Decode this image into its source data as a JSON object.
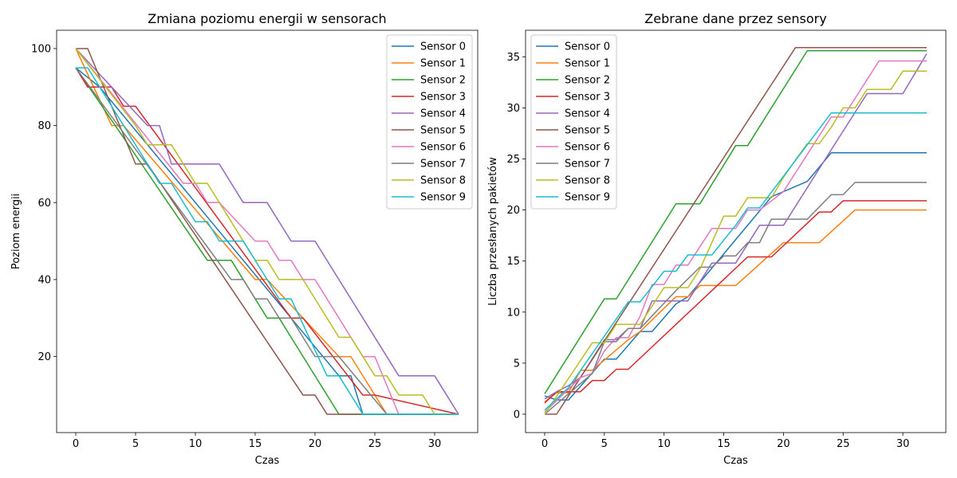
{
  "colors": [
    "#1f77b4",
    "#ff7f0e",
    "#2ca02c",
    "#d62728",
    "#9467bd",
    "#8c564b",
    "#e377c2",
    "#7f7f7f",
    "#bcbd22",
    "#17becf"
  ],
  "chart_data": [
    {
      "type": "line",
      "title": "Zmiana poziomu energii w sensorach",
      "xlabel": "Czas",
      "ylabel": "Poziom energii",
      "xlim": [
        -1.6,
        33.6
      ],
      "ylim": [
        0.25,
        104.75
      ],
      "xticks": [
        0,
        5,
        10,
        15,
        20,
        25,
        30
      ],
      "yticks": [
        20,
        40,
        60,
        80,
        100
      ],
      "legend_position": "top-right",
      "series": [
        {
          "name": "Sensor 0",
          "x": [
            0,
            2,
            22,
            23,
            24,
            32
          ],
          "y": [
            95,
            90,
            15,
            15,
            5,
            5
          ]
        },
        {
          "name": "Sensor 1",
          "x": [
            0,
            3,
            4,
            15,
            16,
            22,
            23,
            25,
            26,
            32
          ],
          "y": [
            100,
            80,
            80,
            40,
            40,
            20,
            20,
            10,
            5,
            5
          ]
        },
        {
          "name": "Sensor 2",
          "x": [
            0,
            11,
            12,
            13,
            16,
            17,
            22,
            32
          ],
          "y": [
            95,
            45,
            45,
            45,
            30,
            30,
            5,
            5
          ]
        },
        {
          "name": "Sensor 3",
          "x": [
            0,
            1,
            2,
            3,
            4,
            5,
            18,
            19,
            24,
            25,
            32
          ],
          "y": [
            95,
            90,
            90,
            90,
            85,
            85,
            30,
            30,
            10,
            10,
            5
          ]
        },
        {
          "name": "Sensor 4",
          "x": [
            0,
            6,
            7,
            8,
            9,
            10,
            11,
            12,
            14,
            15,
            16,
            18,
            19,
            20,
            27,
            28,
            29,
            30,
            32
          ],
          "y": [
            100,
            80,
            80,
            70,
            70,
            70,
            70,
            70,
            60,
            60,
            60,
            50,
            50,
            50,
            15,
            15,
            15,
            15,
            5
          ]
        },
        {
          "name": "Sensor 5",
          "x": [
            0,
            1,
            5,
            6,
            19,
            20,
            21,
            22,
            23,
            24,
            32
          ],
          "y": [
            100,
            100,
            70,
            70,
            10,
            10,
            5,
            5,
            5,
            5,
            5
          ]
        },
        {
          "name": "Sensor 6",
          "x": [
            0,
            9,
            10,
            11,
            12,
            15,
            16,
            17,
            18,
            19,
            20,
            24,
            25,
            27,
            28,
            32
          ],
          "y": [
            100,
            65,
            65,
            60,
            60,
            50,
            50,
            45,
            45,
            40,
            40,
            20,
            20,
            5,
            5,
            5
          ]
        },
        {
          "name": "Sensor 7",
          "x": [
            0,
            13,
            14,
            15,
            16,
            17,
            18,
            20,
            21,
            22,
            26,
            32
          ],
          "y": [
            95,
            40,
            40,
            35,
            35,
            30,
            30,
            20,
            20,
            20,
            5,
            5
          ]
        },
        {
          "name": "Sensor 8",
          "x": [
            0,
            5,
            6,
            7,
            8,
            10,
            11,
            15,
            16,
            17,
            18,
            19,
            22,
            23,
            25,
            26,
            27,
            28,
            29,
            30,
            31,
            32
          ],
          "y": [
            100,
            80,
            75,
            75,
            75,
            65,
            65,
            45,
            45,
            40,
            40,
            40,
            25,
            25,
            15,
            15,
            10,
            10,
            10,
            5,
            5,
            5
          ]
        },
        {
          "name": "Sensor 9",
          "x": [
            0,
            1,
            7,
            8,
            10,
            11,
            12,
            13,
            14,
            17,
            18,
            21,
            22,
            24,
            32
          ],
          "y": [
            95,
            95,
            65,
            65,
            55,
            55,
            50,
            50,
            50,
            35,
            35,
            15,
            15,
            5,
            5
          ]
        }
      ]
    },
    {
      "type": "line",
      "title": "Zebrane dane przez sensory",
      "xlabel": "Czas",
      "ylabel": "Liczba przesłanych pakietów",
      "xlim": [
        -1.6,
        33.6
      ],
      "ylim": [
        -1.8,
        37.6
      ],
      "xticks": [
        0,
        5,
        10,
        15,
        20,
        25,
        30
      ],
      "yticks": [
        0,
        5,
        10,
        15,
        20,
        25,
        30,
        35
      ],
      "legend_position": "top-left",
      "series": [
        {
          "name": "Sensor 0",
          "x": [
            0,
            1,
            2,
            5,
            6,
            8,
            9,
            11,
            12,
            14,
            18,
            19,
            22,
            24,
            32
          ],
          "y": [
            1.8,
            1.4,
            1.4,
            5.4,
            5.4,
            8.1,
            8.1,
            10.8,
            11.5,
            14.3,
            19.9,
            21.3,
            22.8,
            25.6,
            25.6
          ]
        },
        {
          "name": "Sensor 1",
          "x": [
            0,
            1,
            2,
            3,
            4,
            7,
            8,
            11,
            12,
            13,
            16,
            20,
            23,
            26,
            32
          ],
          "y": [
            1.2,
            2.1,
            2.1,
            4.3,
            4.3,
            7.3,
            8.1,
            11.5,
            11.5,
            12.6,
            12.6,
            16.8,
            16.8,
            20,
            20
          ]
        },
        {
          "name": "Sensor 2",
          "x": [
            0,
            5,
            6,
            11,
            12,
            13,
            16,
            17,
            22,
            32
          ],
          "y": [
            2,
            11.3,
            11.3,
            20.6,
            20.6,
            20.6,
            26.3,
            26.3,
            35.6,
            35.6
          ]
        },
        {
          "name": "Sensor 3",
          "x": [
            0,
            1,
            2,
            3,
            4,
            5,
            6,
            7,
            17,
            18,
            19,
            23,
            24,
            25,
            32
          ],
          "y": [
            1.1,
            2.2,
            2.2,
            2.2,
            3.3,
            3.3,
            4.4,
            4.4,
            15.4,
            15.4,
            15.4,
            19.8,
            19.8,
            20.9,
            20.9
          ]
        },
        {
          "name": "Sensor 4",
          "x": [
            0,
            1,
            2,
            3,
            5,
            6,
            7,
            8,
            9,
            11,
            12,
            14,
            16,
            18,
            19,
            20,
            24,
            27,
            28,
            30,
            32
          ],
          "y": [
            1.5,
            2.2,
            2.8,
            3.6,
            7.3,
            7.3,
            8.4,
            8.4,
            11.1,
            11.1,
            11.1,
            14.8,
            14.8,
            18.5,
            18.5,
            18.5,
            25.9,
            31.4,
            31.4,
            31.4,
            35.3
          ]
        },
        {
          "name": "Sensor 5",
          "x": [
            0,
            1,
            21,
            22,
            32
          ],
          "y": [
            0,
            0,
            35.9,
            35.9,
            35.9
          ]
        },
        {
          "name": "Sensor 6",
          "x": [
            0,
            3,
            4,
            5,
            6,
            7,
            8,
            9,
            10,
            11,
            12,
            14,
            15,
            16,
            17,
            18,
            20,
            24,
            25,
            28,
            32
          ],
          "y": [
            0.2,
            3.6,
            4,
            6.2,
            7.5,
            7.5,
            9.6,
            12.7,
            12.7,
            14.6,
            14.6,
            18.2,
            18.2,
            18.2,
            20,
            20,
            21.8,
            29.1,
            29.1,
            34.6,
            34.6
          ]
        },
        {
          "name": "Sensor 7",
          "x": [
            0,
            4,
            5,
            6,
            7,
            8,
            11,
            13,
            14,
            15,
            16,
            17,
            18,
            19,
            20,
            21,
            22,
            24,
            25,
            26,
            32
          ],
          "y": [
            0,
            4,
            7.1,
            7.1,
            8.4,
            8.4,
            12.1,
            14.4,
            14.4,
            15.5,
            15.5,
            16.8,
            16.8,
            19.1,
            19.1,
            19.1,
            19.1,
            21.5,
            21.5,
            22.7,
            22.7
          ]
        },
        {
          "name": "Sensor 8",
          "x": [
            0,
            4,
            5,
            6,
            7,
            8,
            9,
            10,
            11,
            12,
            13,
            15,
            16,
            17,
            18,
            19,
            20,
            21,
            22,
            23,
            24,
            25,
            26,
            27,
            28,
            29,
            30,
            32
          ],
          "y": [
            0,
            7,
            7,
            8.8,
            8.8,
            8.8,
            10.6,
            12.4,
            12.4,
            12.4,
            14.2,
            19.4,
            19.4,
            21.2,
            21.2,
            21.2,
            23.2,
            24.9,
            26.5,
            26.5,
            28.1,
            30,
            30,
            31.8,
            31.8,
            31.8,
            33.6,
            33.6
          ]
        },
        {
          "name": "Sensor 9",
          "x": [
            0,
            2,
            7,
            8,
            10,
            11,
            12,
            13,
            14,
            16,
            17,
            18,
            24,
            32
          ],
          "y": [
            0.4,
            2.6,
            11,
            11,
            14,
            14,
            15.6,
            15.6,
            15.6,
            18.5,
            20.2,
            20.2,
            29.5,
            29.5
          ]
        }
      ]
    }
  ]
}
